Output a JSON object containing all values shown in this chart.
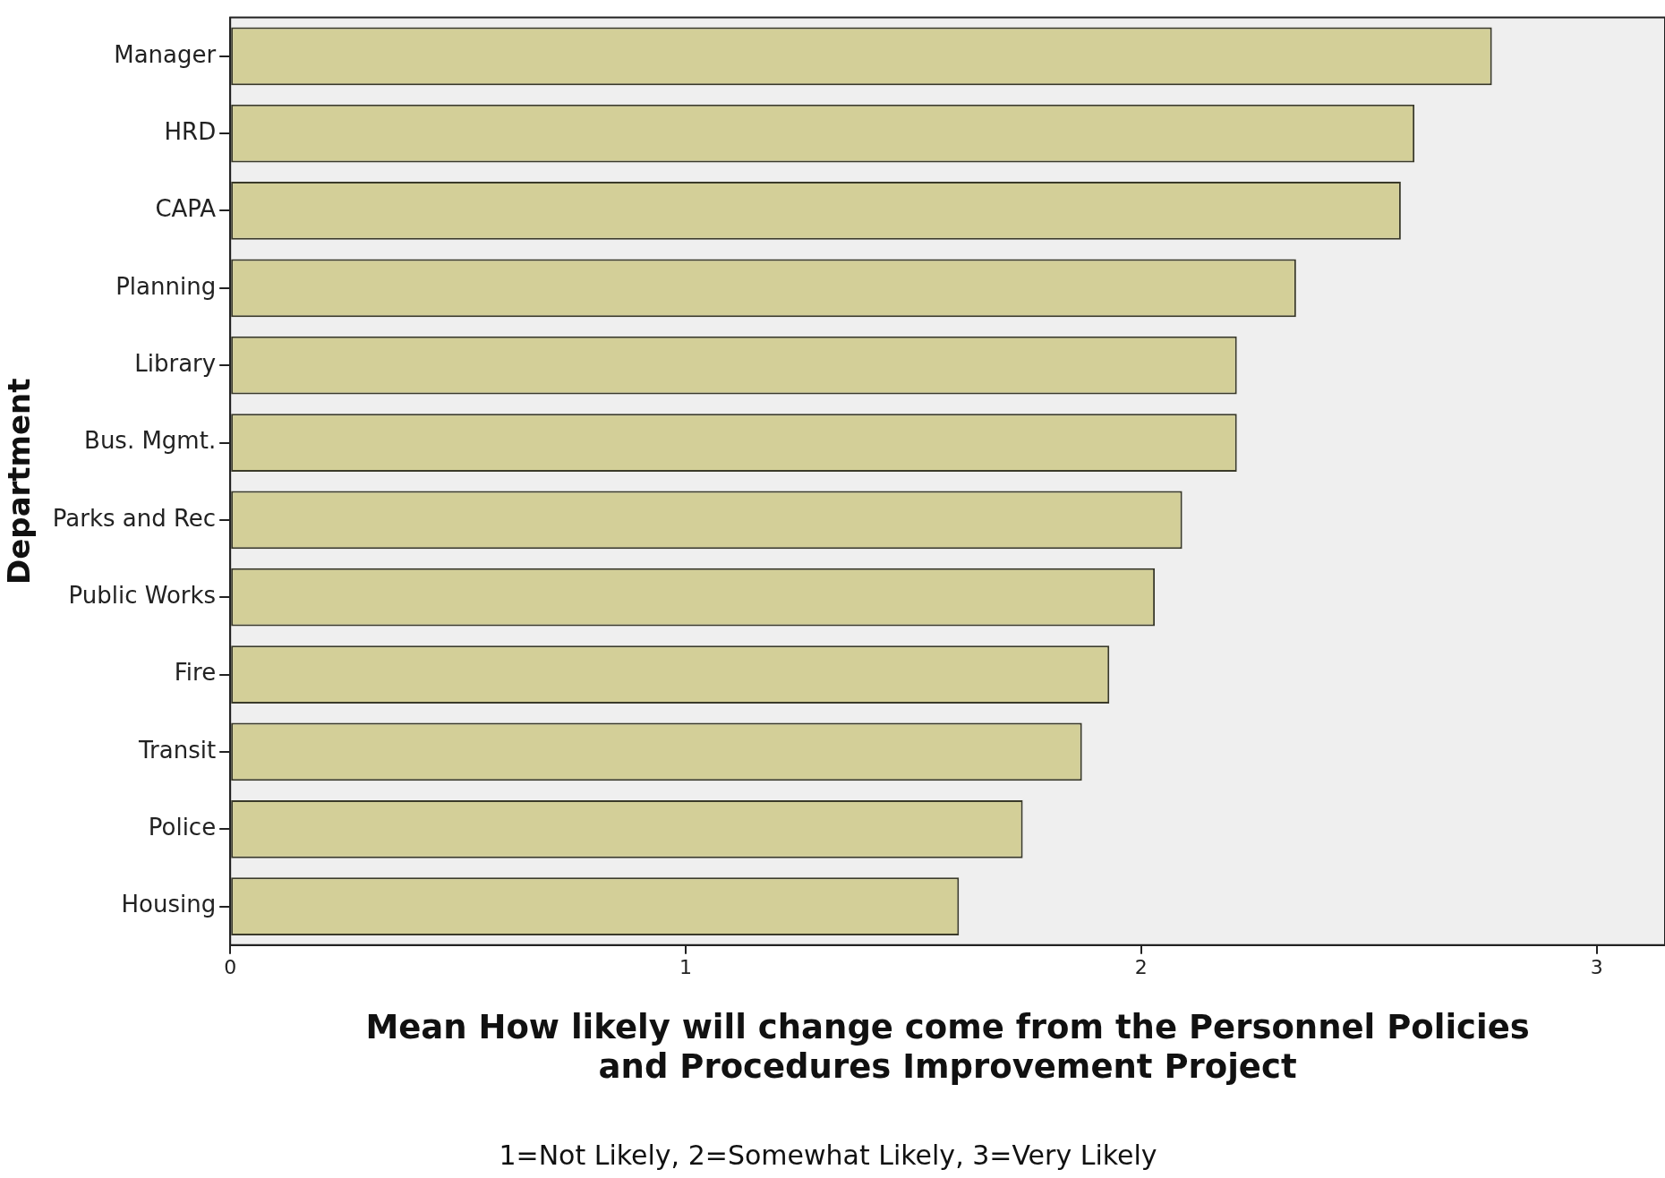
{
  "chart_data": {
    "type": "bar",
    "orientation": "horizontal",
    "xlabel": "Mean How likely will change come from the Personnel Policies\nand Procedures Improvement Project",
    "ylabel": "Department",
    "categories": [
      "Manager",
      "HRD",
      "CAPA",
      "Planning",
      "Library",
      "Bus. Mgmt.",
      "Parks and Rec",
      "Public Works",
      "Fire",
      "Transit",
      "Police",
      "Housing"
    ],
    "values": [
      2.77,
      2.6,
      2.57,
      2.34,
      2.21,
      2.21,
      2.09,
      2.03,
      1.93,
      1.87,
      1.74,
      1.6
    ],
    "color": "#d3cf98",
    "xlim": [
      0,
      3.15
    ],
    "xticks": [
      0,
      1,
      2,
      3
    ],
    "annotations": [
      "1=Not Likely, 2=Somewhat Likely, 3=Very Likely"
    ]
  }
}
